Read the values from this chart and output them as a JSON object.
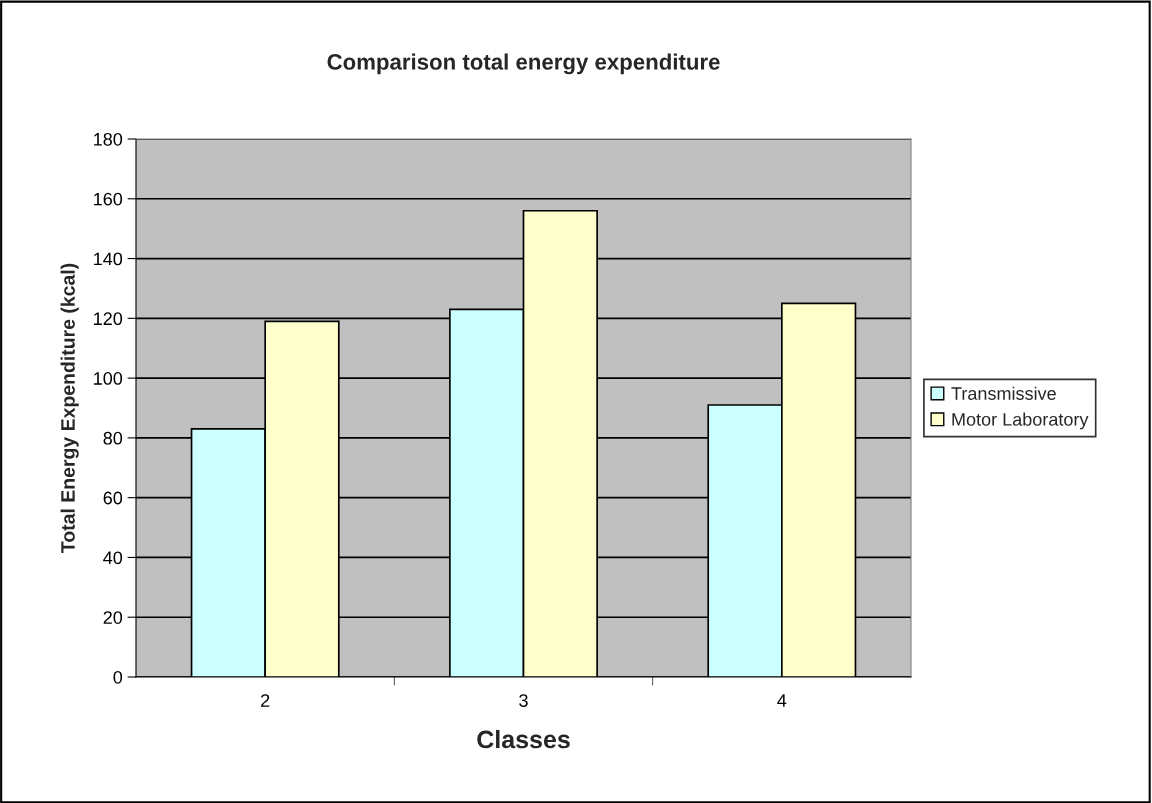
{
  "chart_data": {
    "type": "bar",
    "title": "Comparison total energy expenditure",
    "xlabel": "Classes",
    "ylabel": "Total Energy Expenditure (kcal)",
    "categories": [
      "2",
      "3",
      "4"
    ],
    "series": [
      {
        "name": "Transmissive",
        "color": "#ccffff",
        "values": [
          83,
          123,
          91
        ]
      },
      {
        "name": "Motor Laboratory",
        "color": "#ffffcc",
        "values": [
          119,
          156,
          125
        ]
      }
    ],
    "ylim": [
      0,
      180
    ],
    "yticks": [
      0,
      20,
      40,
      60,
      80,
      100,
      120,
      140,
      160,
      180
    ],
    "grid": "y",
    "legend": "right"
  }
}
